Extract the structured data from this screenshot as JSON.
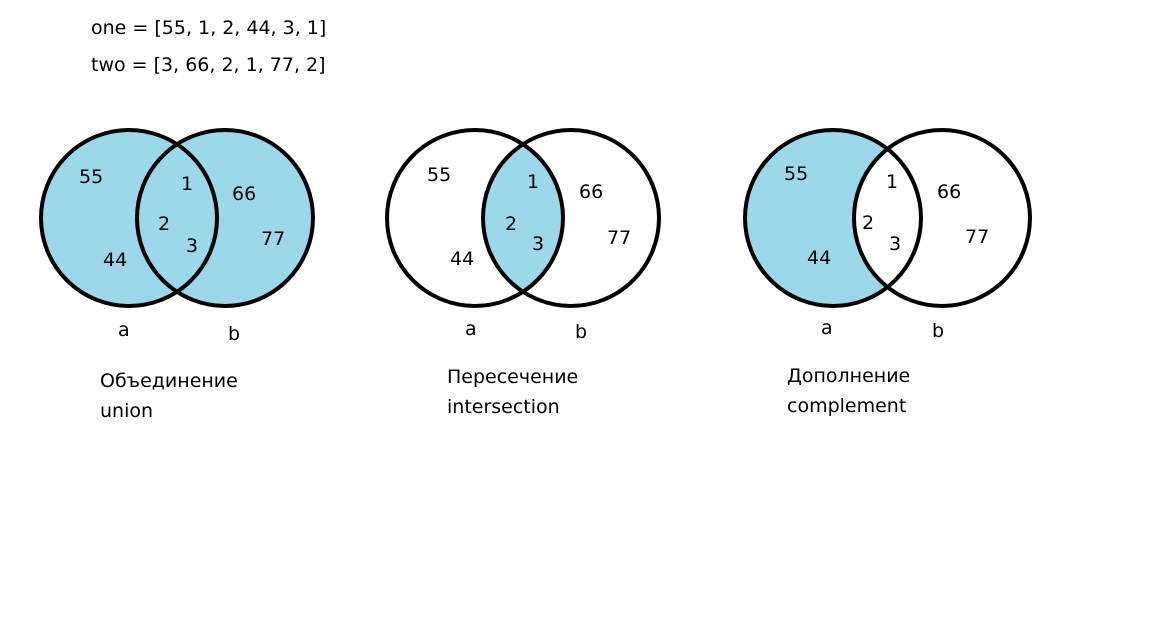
{
  "code": {
    "one": "one = [55, 1, 2, 44, 3, 1]",
    "two": "two = [3, 66, 2, 1, 77, 2]"
  },
  "colors": {
    "fill": "#9dd8ea",
    "stroke": "#000000",
    "background": "#ffffff"
  },
  "diagrams": [
    {
      "highlight": "union",
      "set_a_label": "a",
      "set_b_label": "b",
      "a_only": [
        "55",
        "44"
      ],
      "both": [
        "1",
        "2",
        "3"
      ],
      "b_only": [
        "66",
        "77"
      ],
      "caption_ru": "Объединение",
      "caption_en": "union"
    },
    {
      "highlight": "intersection",
      "set_a_label": "a",
      "set_b_label": "b",
      "a_only": [
        "55",
        "44"
      ],
      "both": [
        "1",
        "2",
        "3"
      ],
      "b_only": [
        "66",
        "77"
      ],
      "caption_ru": "Пересечение",
      "caption_en": "intersection"
    },
    {
      "highlight": "a-minus-b",
      "set_a_label": "a",
      "set_b_label": "b",
      "a_only": [
        "55",
        "44"
      ],
      "both": [
        "1",
        "2",
        "3"
      ],
      "b_only": [
        "66",
        "77"
      ],
      "caption_ru": "Дополнение",
      "caption_en": "complement"
    }
  ]
}
